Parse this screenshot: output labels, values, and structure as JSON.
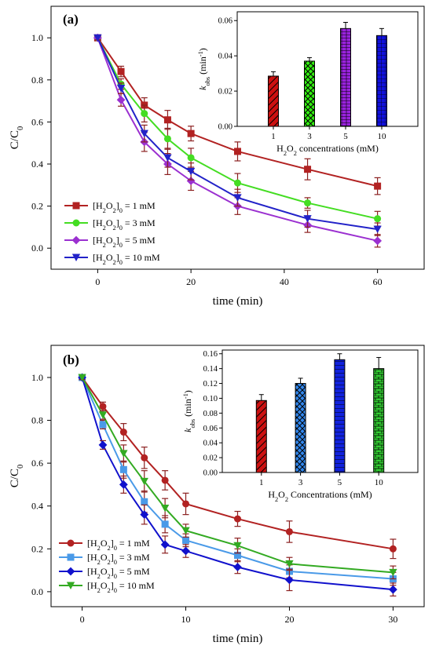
{
  "chart_data": [
    {
      "panel": "(a)",
      "type": "line",
      "xlabel": "time (min)",
      "ylabel": "C/C0",
      "xlim": [
        -10,
        70
      ],
      "ylim": [
        -0.1,
        1.15
      ],
      "xticks": [
        0,
        20,
        40,
        60
      ],
      "yticks": [
        0.0,
        0.2,
        0.4,
        0.6,
        0.8,
        1.0
      ],
      "legend_position": "bottom-left",
      "series": [
        {
          "name": "[H2O2]0 = 1 mM",
          "conc": "1 mM",
          "color": "#b22222",
          "marker": "square",
          "x": [
            0,
            5,
            10,
            15,
            20,
            30,
            45,
            60
          ],
          "y": [
            1.0,
            0.84,
            0.68,
            0.61,
            0.545,
            0.46,
            0.375,
            0.295
          ],
          "err": [
            0.01,
            0.025,
            0.035,
            0.045,
            0.035,
            0.045,
            0.05,
            0.04
          ]
        },
        {
          "name": "[H2O2]0 = 3 mM",
          "conc": "3 mM",
          "color": "#44dd22",
          "marker": "circle",
          "x": [
            0,
            5,
            10,
            15,
            20,
            30,
            45,
            60
          ],
          "y": [
            1.0,
            0.78,
            0.64,
            0.52,
            0.43,
            0.31,
            0.215,
            0.14
          ],
          "err": [
            0.01,
            0.025,
            0.04,
            0.05,
            0.045,
            0.045,
            0.025,
            0.035
          ]
        },
        {
          "name": "[H2O2]0 = 5 mM",
          "conc": "5 mM",
          "color": "#9b30d0",
          "marker": "diamond",
          "x": [
            0,
            5,
            10,
            15,
            20,
            30,
            45,
            60
          ],
          "y": [
            1.0,
            0.705,
            0.505,
            0.4,
            0.32,
            0.2,
            0.11,
            0.035
          ],
          "err": [
            0.01,
            0.03,
            0.045,
            0.05,
            0.045,
            0.04,
            0.035,
            0.03
          ]
        },
        {
          "name": "[H2O2]0 = 10 mM",
          "conc": "10 mM",
          "color": "#2222c8",
          "marker": "triangle-down",
          "x": [
            0,
            5,
            10,
            15,
            20,
            30,
            45,
            60
          ],
          "y": [
            1.0,
            0.76,
            0.545,
            0.43,
            0.365,
            0.24,
            0.14,
            0.09
          ],
          "err": [
            0.01,
            0.025,
            0.04,
            0.045,
            0.04,
            0.04,
            0.04,
            0.03
          ]
        }
      ],
      "inset": {
        "type": "bar",
        "xlabel": "H2O2 concentrations (mM)",
        "ylabel": "kobs (min-1)",
        "categories": [
          "1",
          "3",
          "5",
          "10"
        ],
        "values": [
          0.0285,
          0.037,
          0.0555,
          0.0515
        ],
        "err": [
          0.0025,
          0.002,
          0.0035,
          0.004
        ],
        "colors": [
          "#cc1111",
          "#33ee11",
          "#9922dd",
          "#1111dd"
        ],
        "ylim": [
          0,
          0.065
        ],
        "yticks": [
          0.0,
          0.02,
          0.04,
          0.06
        ],
        "ytick_labels": [
          "0.00",
          "0.02",
          "0.04",
          "0.06"
        ]
      }
    },
    {
      "panel": "(b)",
      "type": "line",
      "xlabel": "time (min)",
      "ylabel": "C/C0",
      "xlim": [
        -3,
        33
      ],
      "ylim": [
        -0.07,
        1.15
      ],
      "xticks": [
        0,
        10,
        20,
        30
      ],
      "yticks": [
        0.0,
        0.2,
        0.4,
        0.6,
        0.8,
        1.0
      ],
      "legend_position": "bottom-left",
      "series": [
        {
          "name": "[H2O2]0 = 1 mM",
          "conc": "1 mM",
          "color": "#b22222",
          "marker": "circle",
          "x": [
            0,
            2,
            4,
            6,
            8,
            10,
            15,
            20,
            30
          ],
          "y": [
            1.0,
            0.865,
            0.745,
            0.625,
            0.52,
            0.41,
            0.34,
            0.28,
            0.2
          ],
          "err": [
            0.01,
            0.02,
            0.04,
            0.05,
            0.045,
            0.05,
            0.035,
            0.05,
            0.045
          ]
        },
        {
          "name": "[H2O2]0 = 3 mM",
          "conc": "3 mM",
          "color": "#4a9ae8",
          "marker": "square",
          "x": [
            0,
            2,
            4,
            6,
            8,
            10,
            15,
            20,
            30
          ],
          "y": [
            1.0,
            0.78,
            0.57,
            0.42,
            0.315,
            0.24,
            0.17,
            0.095,
            0.06
          ],
          "err": [
            0.01,
            0.02,
            0.04,
            0.05,
            0.04,
            0.03,
            0.03,
            0.03,
            0.03
          ]
        },
        {
          "name": "[H2O2]0 = 5 mM",
          "conc": "5 mM",
          "color": "#1111cc",
          "marker": "diamond",
          "x": [
            0,
            2,
            4,
            6,
            8,
            10,
            15,
            20,
            30
          ],
          "y": [
            1.0,
            0.685,
            0.5,
            0.36,
            0.22,
            0.19,
            0.115,
            0.055,
            0.01
          ],
          "err": [
            0.01,
            0.02,
            0.04,
            0.045,
            0.04,
            0.03,
            0.03,
            0.05,
            0.03
          ]
        },
        {
          "name": "[H2O2]0 = 10 mM",
          "conc": "10 mM",
          "color": "#33aa22",
          "marker": "triangle-down",
          "x": [
            0,
            2,
            4,
            6,
            8,
            10,
            15,
            20,
            30
          ],
          "y": [
            1.0,
            0.825,
            0.645,
            0.515,
            0.39,
            0.285,
            0.215,
            0.13,
            0.09
          ],
          "err": [
            0.01,
            0.02,
            0.04,
            0.05,
            0.045,
            0.03,
            0.035,
            0.03,
            0.03
          ]
        }
      ],
      "inset": {
        "type": "bar",
        "xlabel": "H2O2 Concentrations (mM)",
        "ylabel": "kobs (min-1)",
        "categories": [
          "1",
          "3",
          "5",
          "10"
        ],
        "values": [
          0.097,
          0.12,
          0.152,
          0.14
        ],
        "err": [
          0.008,
          0.007,
          0.008,
          0.015
        ],
        "colors": [
          "#cc1111",
          "#3388ee",
          "#1122dd",
          "#33cc33"
        ],
        "ylim": [
          0,
          0.165
        ],
        "yticks": [
          0.0,
          0.02,
          0.04,
          0.06,
          0.08,
          0.1,
          0.12,
          0.14,
          0.16
        ],
        "ytick_labels": [
          "0.00",
          "0.02",
          "0.04",
          "0.06",
          "0.08",
          "0.10",
          "0.12",
          "0.14",
          "0.16"
        ]
      }
    }
  ]
}
